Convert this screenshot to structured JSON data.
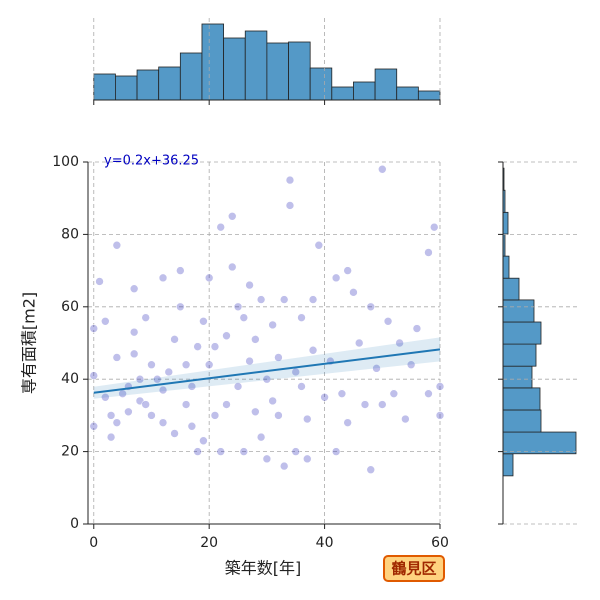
{
  "chart_data": [
    {
      "type": "scatter",
      "xlabel": "築年数[年]",
      "ylabel": "専有面積[m2]",
      "xlim": [
        -1,
        60
      ],
      "ylim": [
        0,
        100
      ],
      "xticks": [
        0,
        20,
        40,
        60
      ],
      "yticks": [
        0,
        20,
        40,
        60,
        80,
        100
      ],
      "grid": true,
      "color": "#2b2bb8",
      "alpha": 0.3,
      "x": [
        0,
        0,
        0,
        1,
        2,
        2,
        3,
        3,
        4,
        4,
        4,
        5,
        6,
        6,
        7,
        7,
        7,
        8,
        8,
        9,
        9,
        10,
        10,
        11,
        12,
        12,
        12,
        13,
        14,
        14,
        15,
        15,
        16,
        16,
        17,
        17,
        18,
        18,
        19,
        19,
        20,
        20,
        21,
        21,
        22,
        22,
        23,
        23,
        24,
        24,
        25,
        25,
        26,
        26,
        27,
        27,
        28,
        28,
        29,
        29,
        30,
        30,
        31,
        31,
        32,
        32,
        33,
        33,
        34,
        34,
        35,
        35,
        36,
        36,
        37,
        37,
        38,
        38,
        39,
        40,
        41,
        42,
        42,
        43,
        44,
        44,
        45,
        46,
        47,
        48,
        48,
        49,
        50,
        50,
        51,
        52,
        53,
        54,
        55,
        56,
        58,
        58,
        59,
        60,
        60
      ],
      "values": [
        54,
        41,
        27,
        67,
        56,
        35,
        30,
        24,
        77,
        46,
        28,
        36,
        38,
        31,
        65,
        53,
        47,
        34,
        40,
        33,
        57,
        44,
        30,
        40,
        68,
        37,
        28,
        42,
        51,
        25,
        70,
        60,
        33,
        44,
        38,
        27,
        20,
        49,
        56,
        23,
        44,
        68,
        49,
        30,
        82,
        20,
        52,
        33,
        85,
        71,
        60,
        38,
        20,
        57,
        66,
        45,
        51,
        31,
        24,
        62,
        40,
        18,
        55,
        34,
        46,
        30,
        62,
        16,
        95,
        88,
        42,
        20,
        57,
        38,
        29,
        18,
        48,
        62,
        77,
        35,
        45,
        20,
        68,
        36,
        70,
        28,
        64,
        50,
        33,
        60,
        15,
        43,
        98,
        33,
        56,
        36,
        50,
        29,
        44,
        54,
        75,
        36,
        82,
        38,
        30
      ],
      "regression": {
        "label": "y=0.2x+36.25",
        "slope": 0.2,
        "intercept": 36.25,
        "color": "#1f77b4",
        "label_color": "#0000c0"
      },
      "badge": "鶴見区"
    },
    {
      "type": "histogram",
      "orientation": "vertical",
      "color": "#5499c7",
      "bins": [
        0,
        3.75,
        7.5,
        11.25,
        15,
        18.75,
        22.5,
        26.25,
        30,
        33.75,
        37.5,
        41.25,
        45,
        48.75,
        52.5,
        56.25,
        60
      ],
      "values": [
        26,
        24,
        30,
        33,
        47,
        76,
        62,
        69,
        57,
        58,
        32,
        13,
        18,
        31,
        13,
        9
      ],
      "xticks": [
        0,
        20,
        40,
        60
      ]
    },
    {
      "type": "histogram",
      "orientation": "horizontal",
      "color": "#5499c7",
      "bins": [
        13.3,
        19.4,
        25.4,
        31.5,
        37.6,
        43.6,
        49.7,
        55.8,
        61.9,
        67.9,
        74,
        80.1,
        86.1,
        92.2,
        98.3
      ],
      "values": [
        10,
        73,
        38,
        37,
        29,
        33,
        38,
        31,
        16,
        6,
        2,
        5,
        2,
        1
      ],
      "yticks": [
        0,
        20,
        40,
        60,
        80,
        100
      ]
    }
  ]
}
